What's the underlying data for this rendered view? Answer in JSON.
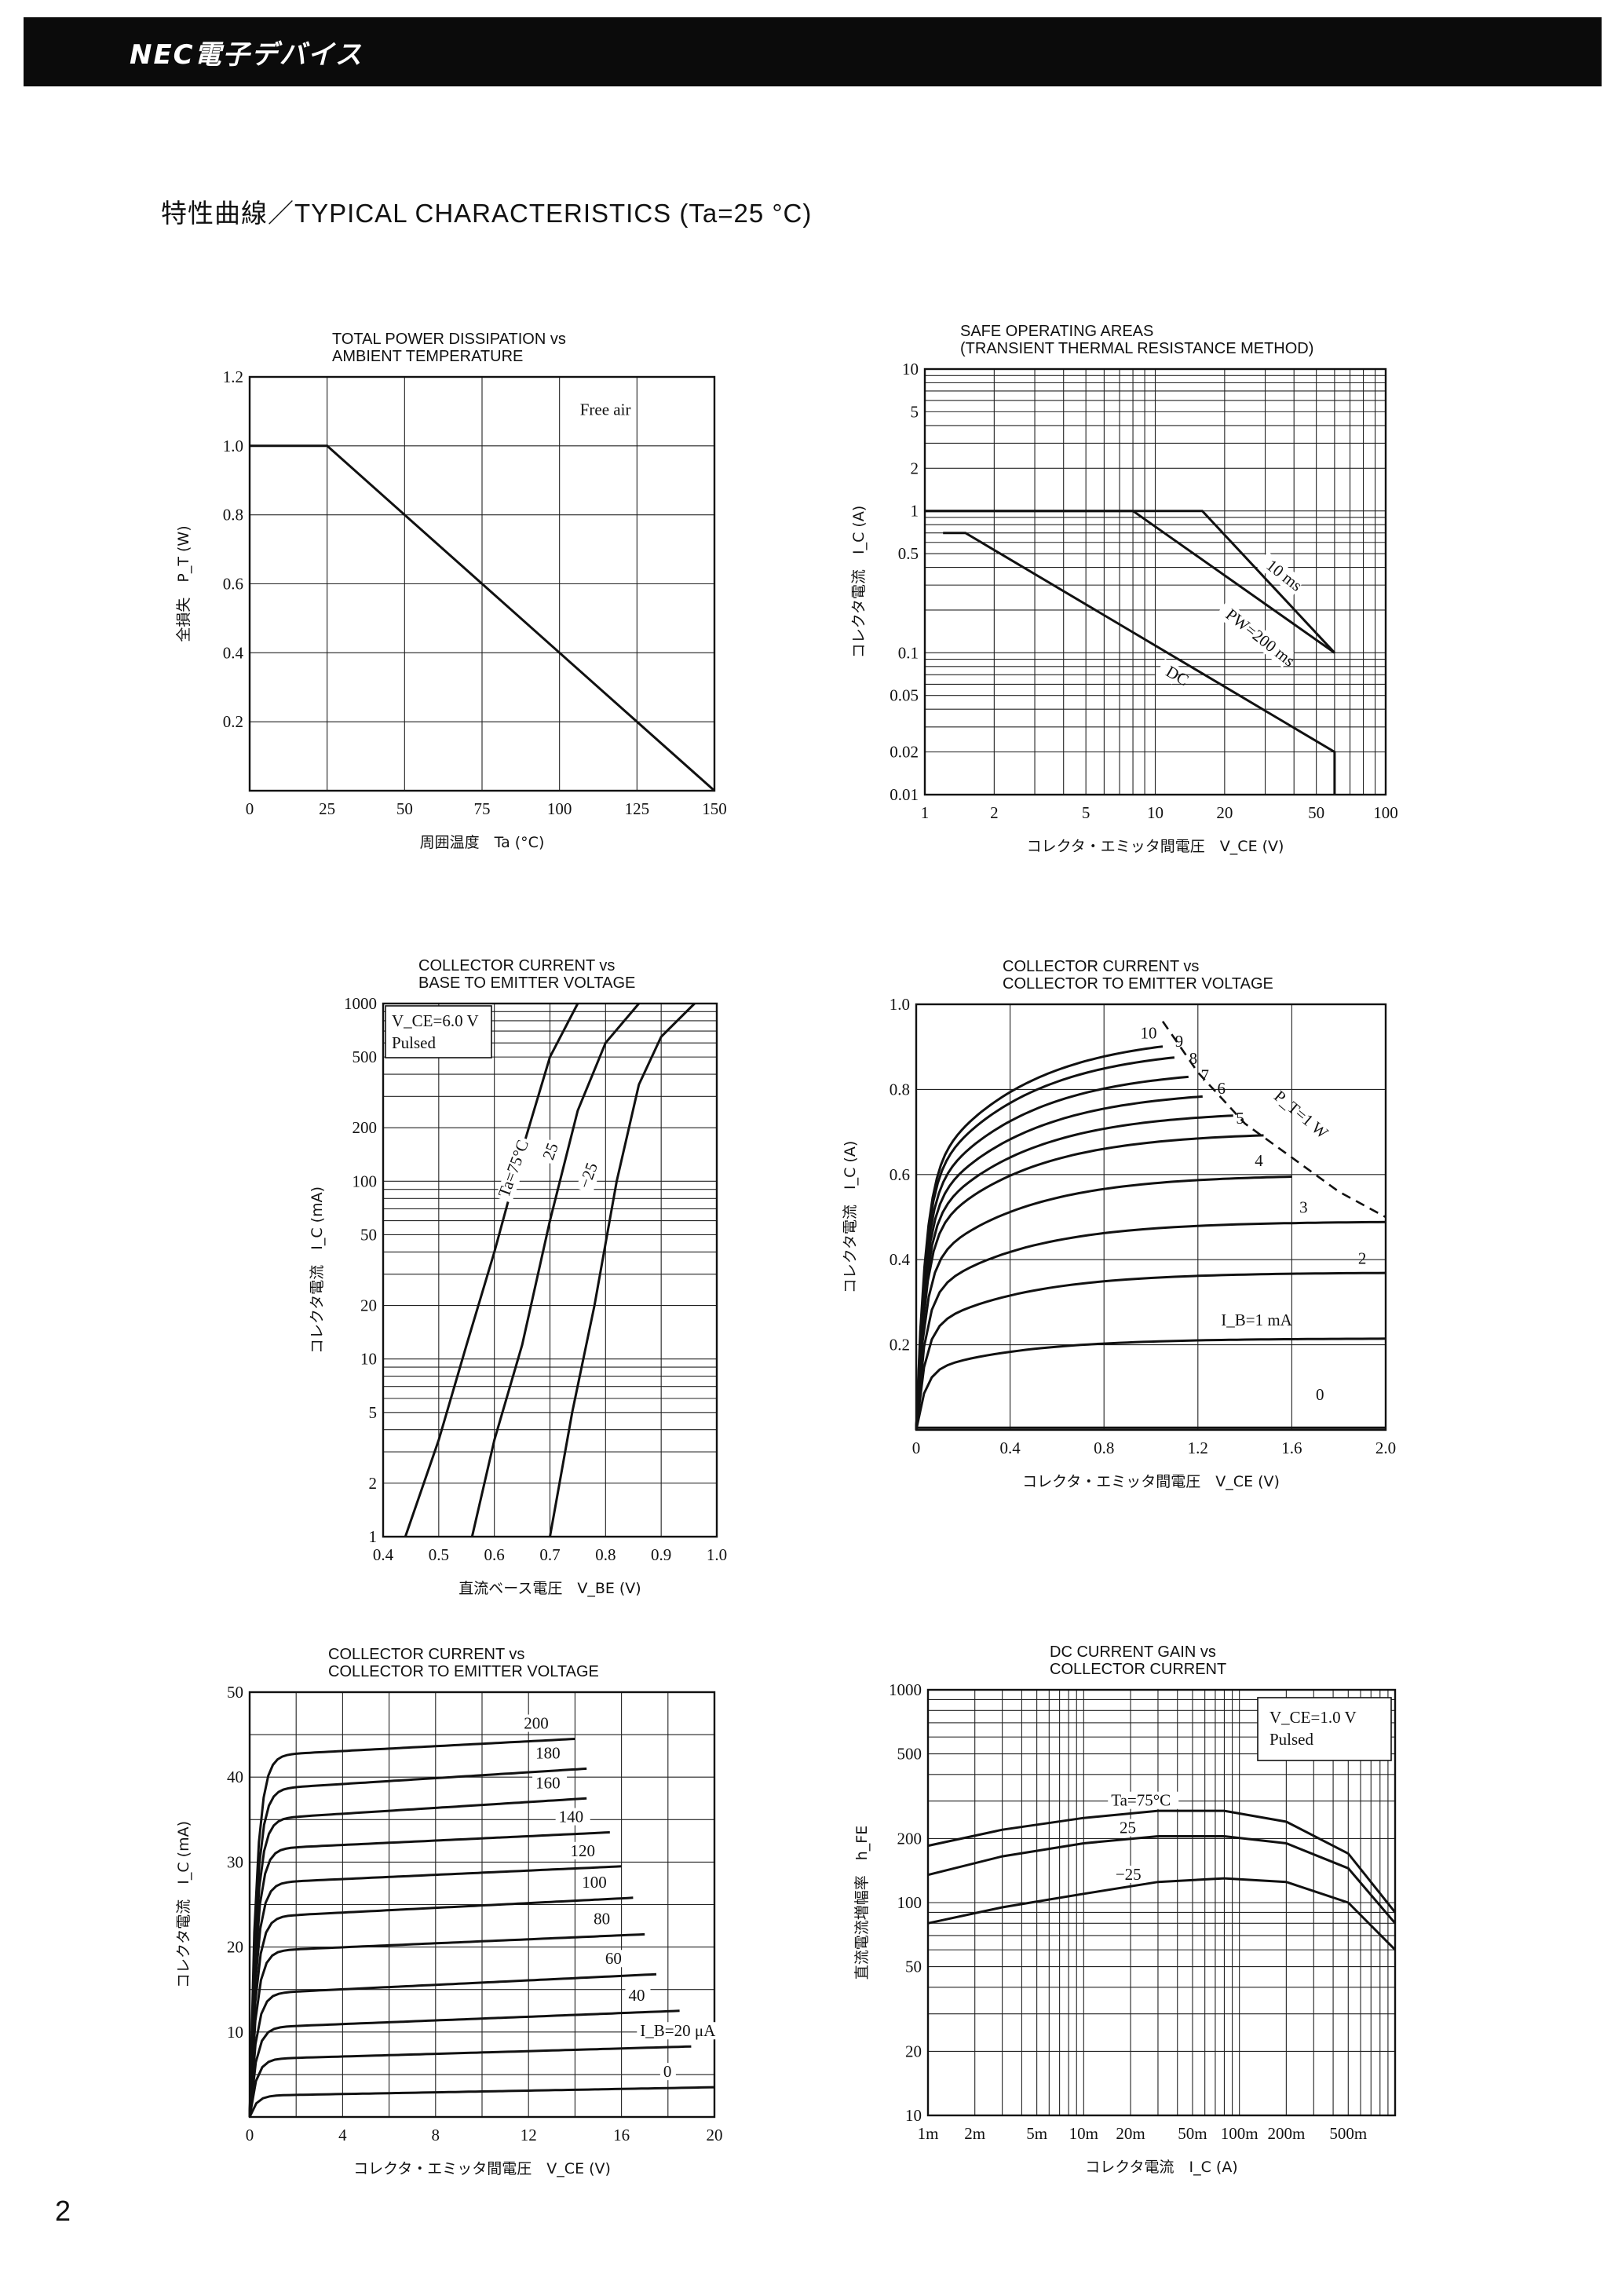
{
  "header": {
    "title": "NEC電子デバイス"
  },
  "section_title": "特性曲線／TYPICAL CHARACTERISTICS (Ta=25 °C)",
  "page_number": "2",
  "chart_data": [
    {
      "id": "power",
      "type": "line",
      "title": [
        "TOTAL  POWER  DISSIPATION  vs",
        "AMBIENT  TEMPERATURE"
      ],
      "xlabel": "周囲温度　Ta (°C)",
      "ylabel": "全損失　P_T (W)",
      "xlim": [
        0,
        150
      ],
      "ylim": [
        0,
        1.2
      ],
      "xticks": [
        0,
        25,
        50,
        75,
        100,
        125,
        150
      ],
      "xtick_labels": [
        "0",
        "25",
        "50",
        "75",
        "100",
        "125",
        "150"
      ],
      "yticks": [
        0.2,
        0.4,
        0.6,
        0.8,
        1.0,
        1.2
      ],
      "ytick_labels": [
        "0.2",
        "0.4",
        "0.6",
        "0.8",
        "1.0",
        "1.2"
      ],
      "grid": true,
      "annotations": [
        {
          "text": "Free air",
          "x": 123,
          "y": 1.09
        }
      ],
      "series": [
        {
          "x": [
            0,
            25,
            150
          ],
          "y": [
            1.0,
            1.0,
            0
          ]
        }
      ]
    },
    {
      "id": "soa",
      "type": "line",
      "title": [
        "SAFE  OPERATING  AREAS",
        "(TRANSIENT  THERMAL  RESISTANCE  METHOD)"
      ],
      "xlabel": "コレクタ・エミッタ間電圧　V_CE (V)",
      "ylabel": "コレクタ電流　I_C (A)",
      "xscale": "log",
      "yscale": "log",
      "xlim": [
        1,
        100
      ],
      "ylim": [
        0.01,
        10
      ],
      "xticks": [
        1,
        2,
        5,
        10,
        20,
        50,
        100
      ],
      "xtick_labels": [
        "1",
        "2",
        "5",
        "10",
        "20",
        "50",
        "100"
      ],
      "yticks": [
        0.01,
        0.02,
        0.05,
        0.1,
        0.5,
        1,
        2,
        5,
        10
      ],
      "ytick_labels": [
        "0.01",
        "0.02",
        "0.05",
        "0.1",
        "0.5",
        "1",
        "2",
        "5",
        "10"
      ],
      "grid": true,
      "series": [
        {
          "name": "DC",
          "x": [
            1.2,
            1.5,
            60,
            60
          ],
          "y": [
            0.7,
            0.7,
            0.02,
            0.01
          ]
        },
        {
          "name": "PW=200 ms",
          "x": [
            1,
            8,
            60
          ],
          "y": [
            1,
            1,
            0.1
          ]
        },
        {
          "name": "10 ms",
          "x": [
            1,
            16,
            60
          ],
          "y": [
            1,
            1,
            0.1
          ]
        }
      ],
      "annotations": [
        {
          "text": "10 ms",
          "x": 30,
          "y": 0.4,
          "rotate": 38
        },
        {
          "text": "PW=200 ms",
          "x": 20,
          "y": 0.18,
          "rotate": 38
        },
        {
          "text": "DC",
          "x": 11,
          "y": 0.07,
          "rotate": 30
        }
      ]
    },
    {
      "id": "ic_vbe",
      "type": "line",
      "title": [
        "COLLECTOR  CURRENT  vs",
        "BASE  TO  EMITTER  VOLTAGE"
      ],
      "xlabel": "直流ベース電圧　V_BE (V)",
      "ylabel": "コレクタ電流　I_C (mA)",
      "yscale": "log",
      "xlim": [
        0.4,
        1.0
      ],
      "ylim": [
        1,
        1000
      ],
      "xticks": [
        0.4,
        0.5,
        0.6,
        0.7,
        0.8,
        0.9,
        1.0
      ],
      "xtick_labels": [
        "0.4",
        "0.5",
        "0.6",
        "0.7",
        "0.8",
        "0.9",
        "1.0"
      ],
      "yticks": [
        1,
        2,
        5,
        10,
        20,
        50,
        100,
        200,
        500,
        1000
      ],
      "ytick_labels": [
        "1",
        "2",
        "5",
        "10",
        "20",
        "50",
        "100",
        "200",
        "500",
        "1000"
      ],
      "grid": true,
      "legend_box": [
        "V_CE=6.0 V",
        "Pulsed"
      ],
      "series": [
        {
          "name": "Ta=75°C",
          "x": [
            0.44,
            0.5,
            0.55,
            0.6,
            0.65,
            0.7,
            0.75
          ],
          "y": [
            1,
            3.5,
            12,
            40,
            150,
            500,
            1000
          ]
        },
        {
          "name": "25",
          "x": [
            0.56,
            0.6,
            0.65,
            0.7,
            0.75,
            0.8,
            0.86
          ],
          "y": [
            1,
            3.5,
            12,
            60,
            250,
            600,
            1000
          ]
        },
        {
          "name": "−25",
          "x": [
            0.7,
            0.74,
            0.78,
            0.82,
            0.86,
            0.9,
            0.96
          ],
          "y": [
            1,
            5,
            20,
            100,
            350,
            650,
            1000
          ]
        }
      ]
    },
    {
      "id": "ic_vce_a",
      "type": "line",
      "title": [
        "COLLECTOR  CURRENT  vs",
        "COLLECTOR  TO  EMITTER  VOLTAGE"
      ],
      "xlabel": "コレクタ・エミッタ間電圧　V_CE (V)",
      "ylabel": "コレクタ電流　I_C (A)",
      "xlim": [
        0,
        2.0
      ],
      "ylim": [
        0,
        1.0
      ],
      "xticks": [
        0,
        0.4,
        0.8,
        1.2,
        1.6,
        2.0
      ],
      "xtick_labels": [
        "0",
        "0.4",
        "0.8",
        "1.2",
        "1.6",
        "2.0"
      ],
      "yticks": [
        0.2,
        0.4,
        0.6,
        0.8,
        1.0
      ],
      "ytick_labels": [
        "0.2",
        "0.4",
        "0.6",
        "0.8",
        "1.0"
      ],
      "grid": true,
      "pt_limit_label": "P_T=1 W",
      "pt_limit": {
        "x": [
          1.05,
          1.2,
          1.4,
          1.6,
          1.8,
          2.0
        ],
        "y": [
          0.96,
          0.84,
          0.72,
          0.64,
          0.56,
          0.5
        ]
      },
      "series": [
        {
          "name": "0",
          "vmax": 2.0,
          "sat": 0.0
        },
        {
          "name": "I_B=1 mA",
          "vmax": 2.0,
          "sat": 0.215
        },
        {
          "name": "2",
          "vmax": 2.0,
          "sat": 0.37
        },
        {
          "name": "3",
          "vmax": 2.0,
          "sat": 0.49
        },
        {
          "name": "4",
          "vmax": 1.6,
          "sat": 0.6
        },
        {
          "name": "5",
          "vmax": 1.48,
          "sat": 0.7
        },
        {
          "name": "6",
          "vmax": 1.35,
          "sat": 0.75
        },
        {
          "name": "7",
          "vmax": 1.22,
          "sat": 0.8
        },
        {
          "name": "8",
          "vmax": 1.16,
          "sat": 0.85
        },
        {
          "name": "9",
          "vmax": 1.1,
          "sat": 0.9
        },
        {
          "name": "10",
          "vmax": 1.05,
          "sat": 0.93
        }
      ]
    },
    {
      "id": "ic_vce_ma",
      "type": "line",
      "title": [
        "COLLECTOR  CURRENT  vs",
        "COLLECTOR  TO  EMITTER  VOLTAGE"
      ],
      "xlabel": "コレクタ・エミッタ間電圧　V_CE (V)",
      "ylabel": "コレクタ電流　I_C (mA)",
      "xlim": [
        0,
        20
      ],
      "ylim": [
        0,
        50
      ],
      "xticks": [
        0,
        4,
        8,
        12,
        16,
        20
      ],
      "xtick_labels": [
        "0",
        "4",
        "8",
        "12",
        "16",
        "20"
      ],
      "yticks": [
        10,
        20,
        30,
        40,
        50
      ],
      "ytick_labels": [
        "10",
        "20",
        "30",
        "40",
        "50"
      ],
      "grid": true,
      "series": [
        {
          "name": "0",
          "xmax": 20,
          "ic_low": 2.5,
          "ic_high": 3.5
        },
        {
          "name": "I_B=20 μA",
          "xmax": 19,
          "ic_low": 6.8,
          "ic_high": 8.3
        },
        {
          "name": "40",
          "xmax": 18.5,
          "ic_low": 10.5,
          "ic_high": 12.5
        },
        {
          "name": "60",
          "xmax": 17.5,
          "ic_low": 14.5,
          "ic_high": 16.8
        },
        {
          "name": "80",
          "xmax": 17,
          "ic_low": 19.5,
          "ic_high": 21.5
        },
        {
          "name": "100",
          "xmax": 16.5,
          "ic_low": 23.5,
          "ic_high": 25.8
        },
        {
          "name": "120",
          "xmax": 16,
          "ic_low": 27.5,
          "ic_high": 29.5
        },
        {
          "name": "140",
          "xmax": 15.5,
          "ic_low": 31.5,
          "ic_high": 33.5
        },
        {
          "name": "160",
          "xmax": 14.5,
          "ic_low": 35,
          "ic_high": 37.5
        },
        {
          "name": "180",
          "xmax": 14.5,
          "ic_low": 38.5,
          "ic_high": 41
        },
        {
          "name": "200",
          "xmax": 14,
          "ic_low": 42.5,
          "ic_high": 44.5
        }
      ]
    },
    {
      "id": "hfe",
      "type": "line",
      "title": [
        "DC  CURRENT  GAIN  vs",
        "COLLECTOR  CURRENT"
      ],
      "xlabel": "コレクタ電流　I_C (A)",
      "ylabel": "直流電流増幅率　h_FE",
      "xscale": "log",
      "yscale": "log",
      "xlim": [
        0.001,
        1
      ],
      "ylim": [
        10,
        1000
      ],
      "xticks": [
        0.001,
        0.002,
        0.005,
        0.01,
        0.02,
        0.05,
        0.1,
        0.2,
        0.5
      ],
      "xtick_labels": [
        "1m",
        "2m",
        "5m",
        "10m",
        "20m",
        "50m",
        "100m",
        "200m",
        "500m"
      ],
      "yticks": [
        10,
        20,
        50,
        100,
        200,
        500,
        1000
      ],
      "ytick_labels": [
        "10",
        "20",
        "50",
        "100",
        "200",
        "500",
        "1000"
      ],
      "grid": true,
      "legend_box": [
        "V_CE=1.0 V",
        "Pulsed"
      ],
      "series": [
        {
          "name": "Ta=75°C",
          "x": [
            0.001,
            0.003,
            0.01,
            0.03,
            0.08,
            0.2,
            0.5,
            1
          ],
          "y": [
            185,
            220,
            250,
            270,
            270,
            240,
            170,
            90
          ]
        },
        {
          "name": "25",
          "x": [
            0.001,
            0.003,
            0.01,
            0.03,
            0.08,
            0.2,
            0.5,
            1
          ],
          "y": [
            135,
            165,
            190,
            205,
            205,
            190,
            145,
            80
          ]
        },
        {
          "name": "−25",
          "x": [
            0.001,
            0.003,
            0.01,
            0.03,
            0.08,
            0.2,
            0.5,
            1
          ],
          "y": [
            80,
            95,
            110,
            125,
            130,
            125,
            100,
            60
          ]
        }
      ]
    }
  ]
}
